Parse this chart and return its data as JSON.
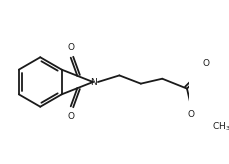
{
  "bg_color": "#ffffff",
  "line_color": "#1a1a1a",
  "lw": 1.3,
  "figsize": [
    2.29,
    1.64
  ],
  "dpi": 100,
  "xlim": [
    0,
    229
  ],
  "ylim": [
    0,
    164
  ]
}
